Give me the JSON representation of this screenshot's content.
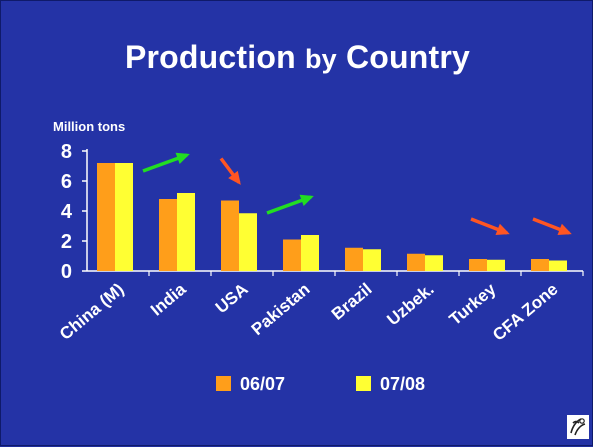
{
  "slide": {
    "title_main": "Production",
    "title_by": "by",
    "title_end": "Country"
  },
  "chart_data": {
    "type": "bar",
    "title": "Production by Country",
    "ylabel": "Million tons",
    "xlabel": "",
    "ylim": [
      0,
      8
    ],
    "yticks": [
      0,
      2,
      4,
      6,
      8
    ],
    "grid": false,
    "legend": "bottom",
    "categories": [
      "China (M)",
      "India",
      "USA",
      "Pakistan",
      "Brazil",
      "Uzbek.",
      "Turkey",
      "CFA Zone"
    ],
    "series": [
      {
        "name": "06/07",
        "color": "#ff9e1a",
        "values": [
          7.2,
          4.8,
          4.7,
          2.1,
          1.55,
          1.15,
          0.8,
          0.8
        ]
      },
      {
        "name": "07/08",
        "color": "#ffff33",
        "values": [
          7.2,
          5.2,
          3.85,
          2.4,
          1.45,
          1.05,
          0.75,
          0.7
        ]
      }
    ],
    "annotations": [
      {
        "type": "trend-arrow",
        "direction": "up",
        "color": "#22dd22",
        "category": "India"
      },
      {
        "type": "trend-arrow",
        "direction": "down",
        "color": "#ff5522",
        "category": "USA"
      },
      {
        "type": "trend-arrow",
        "direction": "up",
        "color": "#22dd22",
        "category": "Pakistan"
      },
      {
        "type": "trend-arrow",
        "direction": "down",
        "color": "#ff5522",
        "category": "Turkey"
      },
      {
        "type": "trend-arrow",
        "direction": "down",
        "color": "#ff5522",
        "category": "CFA Zone"
      }
    ]
  },
  "logo": {
    "icon": "cotton-boll-icon"
  }
}
